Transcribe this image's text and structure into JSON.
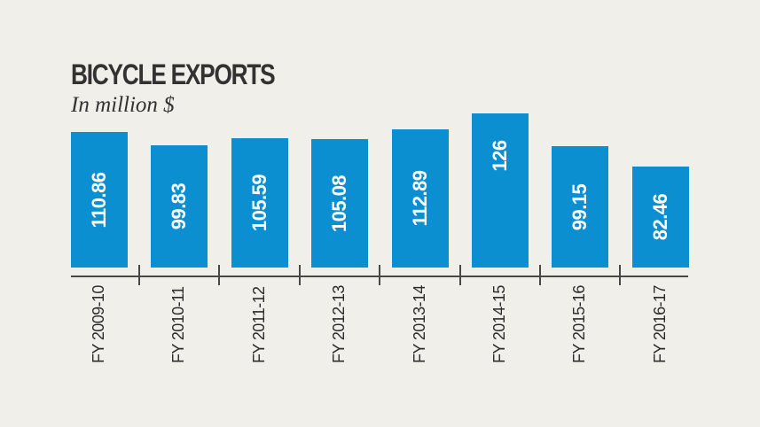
{
  "header": {
    "title": "BICYCLE EXPORTS",
    "subtitle": "In million $"
  },
  "colors": {
    "background": "#f1efe9",
    "bar": "#0b8fd0",
    "text": "#333131",
    "axis": "#4a4846"
  },
  "chart_data": {
    "type": "bar",
    "title": "BICYCLE EXPORTS",
    "subtitle": "In million $",
    "xlabel": "",
    "ylabel": "In million $",
    "categories": [
      "FY 2009-10",
      "FY 2010-11",
      "FY 2011-12",
      "FY 2012-13",
      "FY 2013-14",
      "FY 2014-15",
      "FY 2015-16",
      "FY 2016-17"
    ],
    "values": [
      110.86,
      99.83,
      105.59,
      105.08,
      112.89,
      126,
      99.15,
      82.46
    ],
    "value_labels": [
      "110.86",
      "99.83",
      "105.59",
      "105.08",
      "112.89",
      "126",
      "99.15",
      "82.46"
    ],
    "grid": false,
    "legend": null,
    "data_labels": "inside bars, rotated vertical",
    "category_labels_orientation": "vertical"
  }
}
